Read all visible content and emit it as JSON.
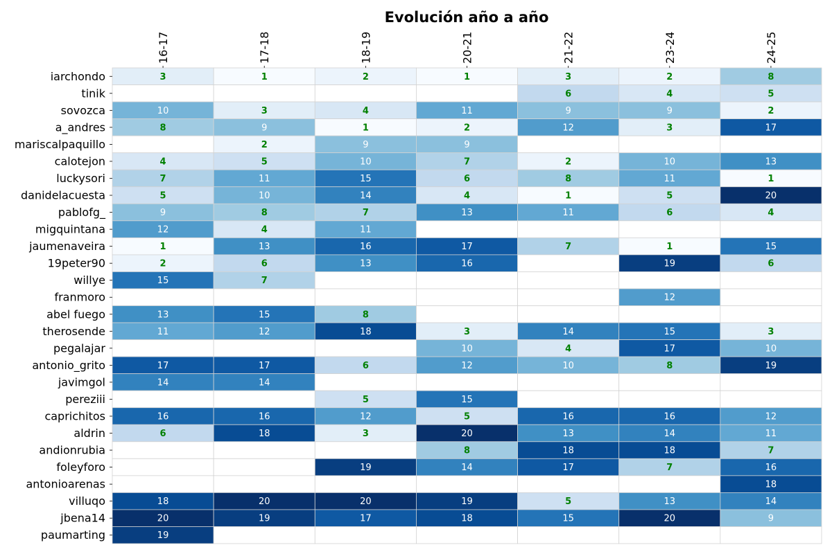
{
  "chart_data": {
    "type": "heatmap",
    "title": "Evolución año a año",
    "columns": [
      "16-17",
      "17-18",
      "18-19",
      "20-21",
      "21-22",
      "23-24",
      "24-25"
    ],
    "rows": [
      "iarchondo",
      "tinik",
      "sovozca",
      "a_andres",
      "mariscalpaquillo",
      "calotejon",
      "luckysori",
      "danidelacuesta",
      "pablofg_",
      "migquintana",
      "jaumenaveira",
      "19peter90",
      "willye",
      "franmoro",
      "abel fuego",
      "therosende",
      "pegalajar",
      "antonio_grito",
      "javimgol",
      "pereziii",
      "caprichitos",
      "aldrin",
      "andionrubia",
      "foleyforo",
      "antonioarenas",
      "villuqo",
      "jbena14",
      "paumarting"
    ],
    "values": [
      [
        3,
        1,
        2,
        1,
        3,
        2,
        8
      ],
      [
        null,
        null,
        null,
        null,
        6,
        4,
        5
      ],
      [
        10,
        3,
        4,
        11,
        9,
        9,
        2
      ],
      [
        8,
        9,
        1,
        2,
        12,
        3,
        17
      ],
      [
        null,
        2,
        9,
        9,
        null,
        null,
        null
      ],
      [
        4,
        5,
        10,
        7,
        2,
        10,
        13
      ],
      [
        7,
        11,
        15,
        6,
        8,
        11,
        1
      ],
      [
        5,
        10,
        14,
        4,
        1,
        5,
        20
      ],
      [
        9,
        8,
        7,
        13,
        11,
        6,
        4
      ],
      [
        12,
        4,
        11,
        null,
        null,
        null,
        null
      ],
      [
        1,
        13,
        16,
        17,
        7,
        1,
        15
      ],
      [
        2,
        6,
        13,
        16,
        null,
        19,
        6
      ],
      [
        15,
        7,
        null,
        null,
        null,
        null,
        null
      ],
      [
        null,
        null,
        null,
        null,
        null,
        12,
        null
      ],
      [
        13,
        15,
        8,
        null,
        null,
        null,
        null
      ],
      [
        11,
        12,
        18,
        3,
        14,
        15,
        3
      ],
      [
        null,
        null,
        null,
        10,
        4,
        17,
        10
      ],
      [
        17,
        17,
        6,
        12,
        10,
        8,
        19
      ],
      [
        14,
        14,
        null,
        null,
        null,
        null,
        null
      ],
      [
        null,
        null,
        5,
        15,
        null,
        null,
        null
      ],
      [
        16,
        16,
        12,
        5,
        16,
        16,
        12
      ],
      [
        6,
        18,
        3,
        20,
        13,
        14,
        11
      ],
      [
        null,
        null,
        null,
        8,
        18,
        18,
        7
      ],
      [
        null,
        null,
        19,
        14,
        17,
        7,
        16
      ],
      [
        null,
        null,
        null,
        null,
        null,
        null,
        18
      ],
      [
        18,
        20,
        20,
        19,
        5,
        13,
        14
      ],
      [
        20,
        19,
        17,
        18,
        15,
        20,
        9
      ],
      [
        19,
        null,
        null,
        null,
        null,
        null,
        null
      ]
    ],
    "value_range": [
      1,
      20
    ],
    "colormap": "Blues",
    "highlight_threshold": 8,
    "highlight_color": "#008000",
    "default_text_color": "#ffffff",
    "grid": true
  }
}
